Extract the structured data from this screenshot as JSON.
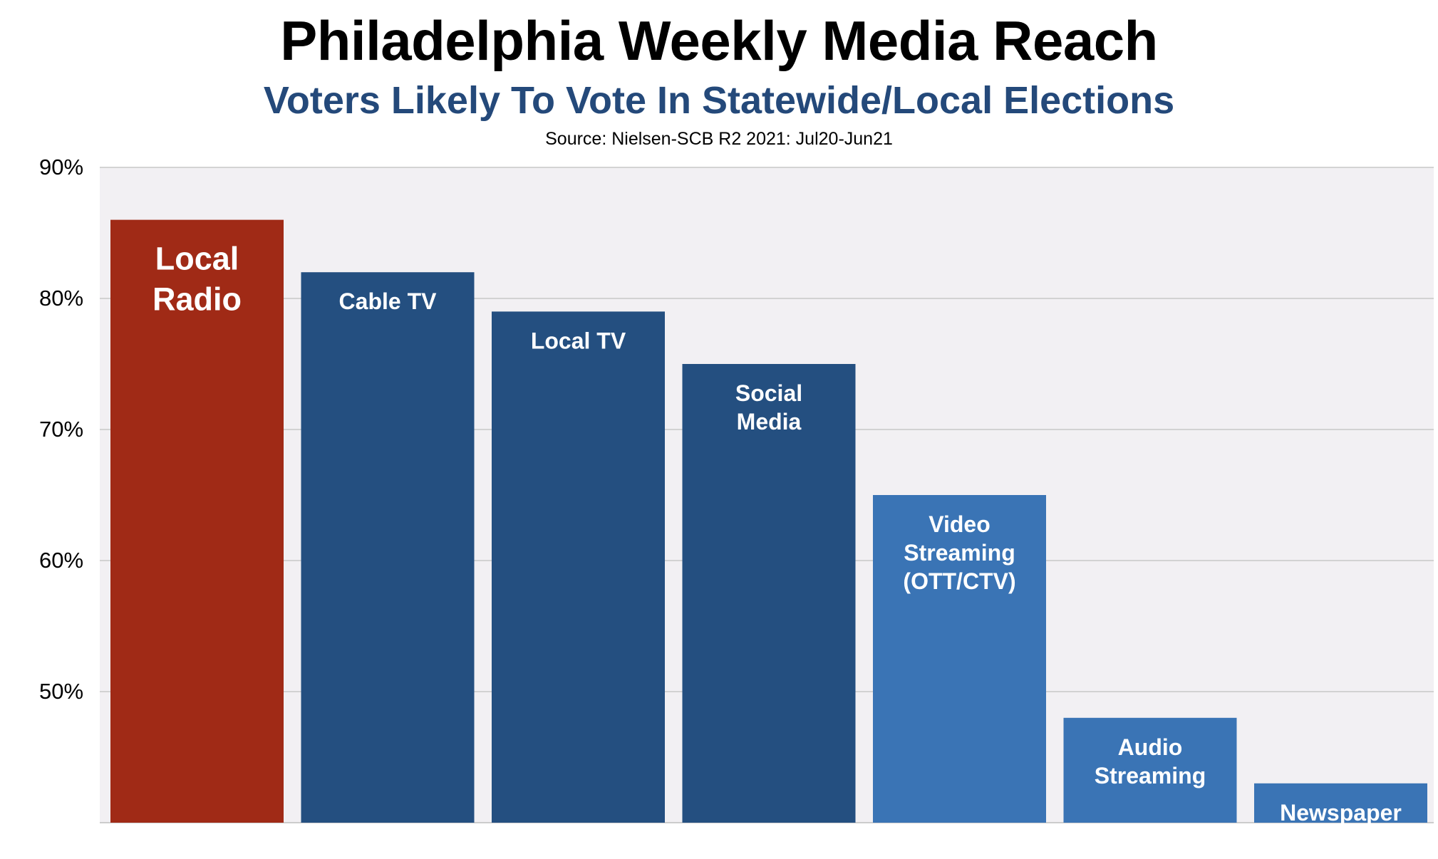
{
  "chart_data": {
    "type": "bar",
    "title": "Philadelphia Weekly Media Reach",
    "subtitle": "Voters Likely To Vote In Statewide/Local Elections",
    "source": "Source: Nielsen-SCB R2 2021:  Jul20-Jun21",
    "categories": [
      "Local Radio",
      "Cable TV",
      "Local TV",
      "Social Media",
      "Video Streaming (OTT/CTV)",
      "Audio Streaming",
      "Newspaper"
    ],
    "label_lines": [
      [
        "Local",
        "Radio"
      ],
      [
        "Cable TV"
      ],
      [
        "Local TV"
      ],
      [
        "Social",
        "Media"
      ],
      [
        "Video",
        "Streaming",
        "(OTT/CTV)"
      ],
      [
        "Audio",
        "Streaming"
      ],
      [
        "Newspaper"
      ]
    ],
    "values": [
      86,
      82,
      79,
      75,
      65,
      48,
      43
    ],
    "unit": "%",
    "ylim": [
      40,
      90
    ],
    "yticks": [
      90,
      80,
      70,
      60,
      50
    ],
    "ytick_labels": [
      "90%",
      "80%",
      "70%",
      "60%",
      "50%"
    ],
    "grid": true,
    "colors": {
      "highlight": "#a02a16",
      "dark_blue": "#244f80",
      "light_blue": "#3a74b5",
      "plot_background": "#f2f0f3",
      "gridline": "#c8c8c8",
      "title": "#000000",
      "subtitle": "#24497a"
    },
    "bar_color_keys": [
      "highlight",
      "dark_blue",
      "dark_blue",
      "dark_blue",
      "light_blue",
      "light_blue",
      "light_blue"
    ]
  }
}
